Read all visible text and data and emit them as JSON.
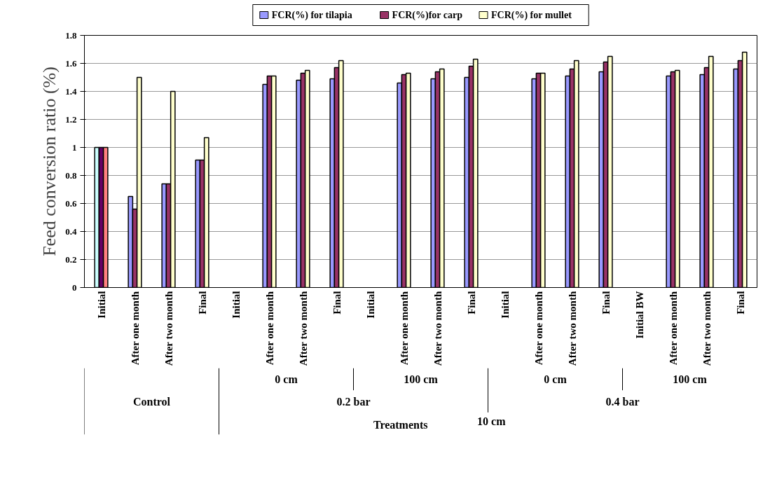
{
  "chart_data": {
    "type": "bar",
    "ylabel": "Feed conversion ratio (%)",
    "categories": [
      "Initial",
      "After one month",
      "After two month",
      "Final",
      "Initial",
      "After one month",
      "After two month",
      "Final",
      "Initial",
      "After one month",
      "After two month",
      "Final",
      "Initial",
      "After one month",
      "After two month",
      "Final",
      "Initial BW",
      "After one month",
      "After two month",
      "Final"
    ],
    "series": [
      {
        "name": "FCR(%) for tilapia",
        "color": "#9999ff",
        "colors": [
          "#ccffff",
          "#9999ff",
          "#9999ff",
          "#9999ff",
          "#9999ff",
          "#9999ff",
          "#9999ff",
          "#9999ff",
          "#9999ff",
          "#9999ff",
          "#9999ff",
          "#9999ff",
          "#9999ff",
          "#9999ff",
          "#9999ff",
          "#9999ff",
          "#9999ff",
          "#9999ff",
          "#9999ff",
          "#9999ff"
        ],
        "values": [
          1.0,
          0.65,
          0.74,
          0.91,
          null,
          1.45,
          1.48,
          1.49,
          null,
          1.46,
          1.49,
          1.5,
          null,
          1.49,
          1.51,
          1.54,
          null,
          1.51,
          1.52,
          1.56
        ]
      },
      {
        "name": "FCR(%)for carp",
        "color": "#993366",
        "colors": [
          "#660066",
          "#993366",
          "#993366",
          "#993366",
          "#993366",
          "#993366",
          "#993366",
          "#993366",
          "#993366",
          "#993366",
          "#993366",
          "#993366",
          "#993366",
          "#993366",
          "#993366",
          "#993366",
          "#993366",
          "#993366",
          "#993366",
          "#993366"
        ],
        "values": [
          1.0,
          0.56,
          0.74,
          0.91,
          null,
          1.51,
          1.53,
          1.57,
          null,
          1.52,
          1.54,
          1.58,
          null,
          1.53,
          1.56,
          1.61,
          null,
          1.54,
          1.57,
          1.62
        ]
      },
      {
        "name": "FCR(%) for mullet",
        "color": "#ffffcc",
        "colors": [
          "#ff8080",
          "#ffffcc",
          "#ffffcc",
          "#ffffcc",
          "#ffffcc",
          "#ffffcc",
          "#ffffcc",
          "#ffffcc",
          "#ffffcc",
          "#ffffcc",
          "#ffffcc",
          "#ffffcc",
          "#ffffcc",
          "#ffffcc",
          "#ffffcc",
          "#ffffcc",
          "#ffffcc",
          "#ffffcc",
          "#ffffcc",
          "#ffffcc"
        ],
        "values": [
          1.0,
          1.5,
          1.4,
          1.07,
          null,
          1.51,
          1.55,
          1.62,
          null,
          1.53,
          1.56,
          1.63,
          null,
          1.53,
          1.62,
          1.65,
          null,
          1.55,
          1.65,
          1.68
        ]
      }
    ],
    "ylim": [
      0,
      1.8
    ],
    "yticks": [
      0,
      0.2,
      0.4,
      0.6,
      0.8,
      1,
      1.2,
      1.4,
      1.6,
      1.8
    ],
    "grid": "y",
    "legend": "top",
    "annotations": [
      "0 cm",
      "100 cm",
      "0 cm",
      "100 cm",
      "Control",
      "0.2 bar",
      "0.4 bar",
      "Treatments",
      "10 cm"
    ]
  }
}
